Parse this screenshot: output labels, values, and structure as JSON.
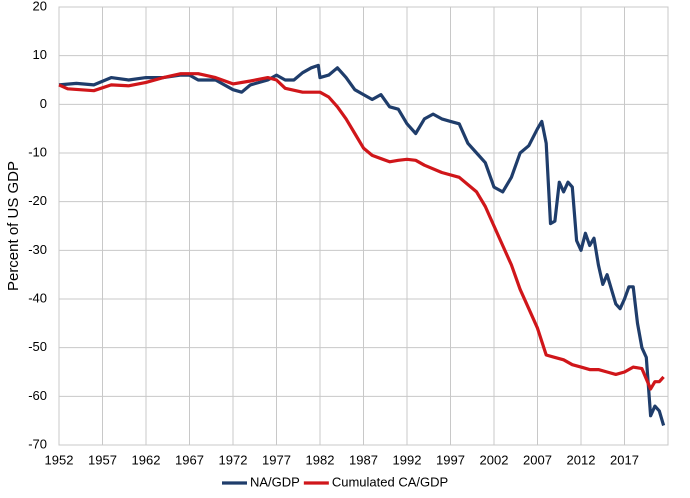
{
  "chart_data": {
    "type": "line",
    "y_label": "Percent of US GDP",
    "xlim": [
      1952,
      2022
    ],
    "xticks": [
      1952,
      1957,
      1962,
      1967,
      1972,
      1977,
      1982,
      1987,
      1992,
      1997,
      2002,
      2007,
      2012,
      2017
    ],
    "ylim": [
      -70,
      20
    ],
    "yticks": [
      20,
      10,
      0,
      -10,
      -20,
      -30,
      -40,
      -50,
      -60,
      -70
    ],
    "grid": true,
    "legend": "bottom",
    "series": [
      {
        "name": "NA/GDP",
        "color": "#1f3d6b",
        "x": [
          1952,
          1954,
          1956,
          1958,
          1960,
          1962,
          1964,
          1966,
          1967,
          1968,
          1970,
          1972,
          1973,
          1974,
          1976,
          1977,
          1978,
          1979,
          1980,
          1981,
          1981.8,
          1982,
          1983,
          1984,
          1985,
          1986,
          1987,
          1988,
          1989,
          1990,
          1991,
          1992,
          1993,
          1994,
          1995,
          1996,
          1997,
          1998,
          1999,
          2000,
          2001,
          2002,
          2003,
          2004,
          2005,
          2006,
          2007,
          2007.5,
          2008,
          2008.5,
          2009,
          2009.5,
          2010,
          2010.5,
          2011,
          2011.5,
          2012,
          2012.5,
          2013,
          2013.5,
          2014,
          2014.5,
          2015,
          2016,
          2016.5,
          2017,
          2017.5,
          2018,
          2018.5,
          2019,
          2019.5,
          2020,
          2020.5,
          2021,
          2021.5
        ],
        "values": [
          4,
          4.3,
          4,
          5.5,
          5,
          5.5,
          5.5,
          6,
          6,
          5,
          5,
          3,
          2.5,
          4,
          5,
          6,
          5,
          5,
          6.5,
          7.5,
          8,
          5.5,
          6,
          7.5,
          5.5,
          3,
          2,
          1,
          2,
          -0.5,
          -1,
          -4,
          -6,
          -3,
          -2,
          -3,
          -3.5,
          -4,
          -8,
          -10,
          -12,
          -17,
          -18,
          -15,
          -10,
          -8.5,
          -5,
          -3.5,
          -8,
          -24.5,
          -24,
          -16,
          -18,
          -16,
          -17,
          -28,
          -30,
          -26.5,
          -29,
          -27.5,
          -33,
          -37,
          -35,
          -41,
          -42,
          -40,
          -37.5,
          -37.5,
          -45,
          -50,
          -52,
          -64,
          -62,
          -63,
          -66
        ]
      },
      {
        "name": "Cumulated CA/GDP",
        "color": "#d0161a",
        "x": [
          1952,
          1953,
          1956,
          1958,
          1960,
          1962,
          1964,
          1966,
          1968,
          1970,
          1972,
          1974,
          1976,
          1977,
          1978,
          1980,
          1982,
          1983,
          1984,
          1985,
          1986,
          1987,
          1988,
          1990,
          1991,
          1992,
          1993,
          1994,
          1996,
          1998,
          2000,
          2001,
          2002,
          2003,
          2004,
          2005,
          2006,
          2007,
          2008,
          2009,
          2010,
          2011,
          2012,
          2013,
          2014,
          2015,
          2016,
          2017,
          2018,
          2019,
          2020,
          2020.5,
          2021,
          2021.5
        ],
        "values": [
          4,
          3.2,
          2.8,
          4,
          3.8,
          4.5,
          5.5,
          6.3,
          6.3,
          5.5,
          4.2,
          4.8,
          5.5,
          5,
          3.3,
          2.5,
          2.5,
          1.5,
          -0.5,
          -3,
          -6,
          -9,
          -10.5,
          -11.8,
          -11.5,
          -11.3,
          -11.5,
          -12.5,
          -14,
          -15,
          -18,
          -21,
          -25,
          -29,
          -33,
          -38,
          -42,
          -46,
          -51.5,
          -52,
          -52.5,
          -53.5,
          -54,
          -54.5,
          -54.5,
          -55,
          -55.5,
          -55,
          -54,
          -54.3,
          -58.5,
          -57,
          -57,
          -56
        ]
      }
    ]
  }
}
